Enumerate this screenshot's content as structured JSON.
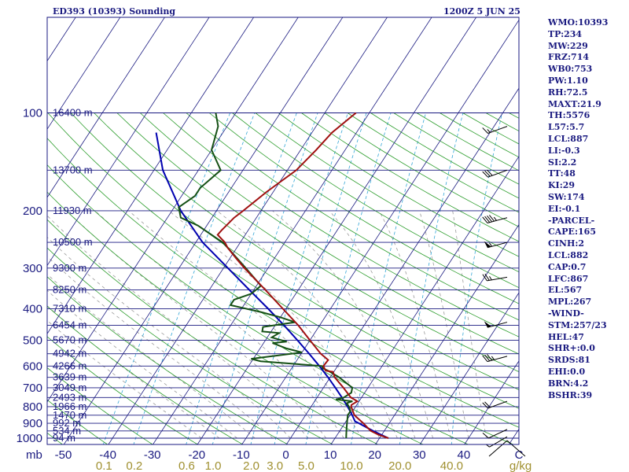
{
  "title_left": "ED393 (10393) Sounding",
  "title_right": "1200Z  5 JUN 25",
  "indices": [
    "WMO:10393",
    "TP:234",
    "MW:229",
    "FRZ:714",
    "WB0:753",
    "PW:1.10",
    "RH:72.5",
    "MAXT:21.9",
    "TH:5576",
    "L57:5.7",
    "LCL:887",
    "LI:-0.3",
    "SI:2.2",
    "TT:48",
    "KI:29",
    "SW:174",
    "EI:-0.1",
    "-PARCEL-",
    "CAPE:165",
    "CINH:2",
    "LCL:882",
    "CAP:0.7",
    "LFC:867",
    "EL:567",
    "MPL:267",
    "-WIND-",
    "STM:257/23",
    "HEL:47",
    "SHR+:0.0",
    "SRDS:81",
    "EHI:0.0",
    "BRN:4.2",
    "BSHR:39"
  ],
  "colors": {
    "frame": "#1a1a80",
    "isobar": "#1a1a80",
    "isotherm": "#1a1a80",
    "dry_adiabat": "#2e9e2e",
    "moist_adiabat": "#9a9a9a",
    "mixing_ratio": "#33a6d6",
    "temperature": "#a01010",
    "dewpoint": "#155015",
    "parcel": "#0000b0",
    "temp_labels": "#1a1a80",
    "mixing_labels": "#a09030",
    "wind_barbs": "#000000"
  },
  "chart_data": {
    "type": "skew-t log-p sounding",
    "title": "ED393 (10393) Sounding",
    "valid_time": "1200Z  5 JUN 25",
    "pressure_axis": {
      "label": "mb",
      "ticks": [
        100,
        200,
        300,
        400,
        500,
        600,
        700,
        800,
        900,
        1000
      ],
      "range": [
        1050,
        100
      ],
      "scale": "log"
    },
    "temperature_axis": {
      "ticks": [
        -50,
        -40,
        -30,
        -20,
        -10,
        0,
        10,
        20,
        30,
        40
      ],
      "unit": "C"
    },
    "mixing_ratio_axis": {
      "unit": "g/kg",
      "labels": [
        {
          "text": "0.1",
          "w": 0.1
        },
        {
          "text": "0.2",
          "w": 0.2
        },
        {
          "text": "0.6",
          "w": 0.6
        },
        {
          "text": "1.0",
          "w": 1.0
        },
        {
          "text": "2.0",
          "w": 2.0
        },
        {
          "text": "3.0",
          "w": 3.0
        },
        {
          "text": "5.0",
          "w": 5.0
        },
        {
          "text": "10.0",
          "w": 10.0
        },
        {
          "text": "20.0",
          "w": 20.0
        },
        {
          "text": "40.0",
          "w": 40.0
        }
      ]
    },
    "height_labels": [
      {
        "p": 100,
        "text": "16400 m"
      },
      {
        "p": 150,
        "text": "13700 m"
      },
      {
        "p": 200,
        "text": "11930 m"
      },
      {
        "p": 250,
        "text": "10500 m"
      },
      {
        "p": 300,
        "text": "9300 m"
      },
      {
        "p": 350,
        "text": "8250 m"
      },
      {
        "p": 400,
        "text": "7310 m"
      },
      {
        "p": 450,
        "text": "6454 m"
      },
      {
        "p": 500,
        "text": "5670 m"
      },
      {
        "p": 550,
        "text": "4942 m"
      },
      {
        "p": 600,
        "text": "4266 m"
      },
      {
        "p": 650,
        "text": "3639 m"
      },
      {
        "p": 700,
        "text": "3049 m"
      },
      {
        "p": 750,
        "text": "2493 m"
      },
      {
        "p": 800,
        "text": "1966 m"
      },
      {
        "p": 850,
        "text": "1470 m"
      },
      {
        "p": 900,
        "text": "992 m"
      },
      {
        "p": 950,
        "text": "534 m"
      },
      {
        "p": 1000,
        "text": "94 m"
      }
    ],
    "temperature": [
      [
        1000,
        22.0
      ],
      [
        975,
        19.2
      ],
      [
        950,
        17.0
      ],
      [
        925,
        15.6
      ],
      [
        900,
        14.2
      ],
      [
        875,
        12.6
      ],
      [
        850,
        11.0
      ],
      [
        825,
        10.0
      ],
      [
        800,
        9.0
      ],
      [
        790,
        8.8
      ],
      [
        770,
        9.6
      ],
      [
        750,
        7.6
      ],
      [
        700,
        4.5
      ],
      [
        650,
        1.0
      ],
      [
        625,
        -0.2
      ],
      [
        620,
        -2.0
      ],
      [
        600,
        -3.2
      ],
      [
        575,
        -3.0
      ],
      [
        550,
        -5.6
      ],
      [
        500,
        -10.0
      ],
      [
        450,
        -14.8
      ],
      [
        400,
        -20.7
      ],
      [
        350,
        -27.4
      ],
      [
        300,
        -35.3
      ],
      [
        280,
        -38.6
      ],
      [
        260,
        -42.0
      ],
      [
        250,
        -43.5
      ],
      [
        237,
        -46.2
      ],
      [
        230,
        -46.0
      ],
      [
        210,
        -45.0
      ],
      [
        200,
        -44.0
      ],
      [
        175,
        -41.5
      ],
      [
        150,
        -38.0
      ],
      [
        130,
        -36.5
      ],
      [
        115,
        -35.5
      ],
      [
        100,
        -33.0
      ]
    ],
    "dewpoint": [
      [
        1000,
        12.5
      ],
      [
        975,
        12.0
      ],
      [
        950,
        11.5
      ],
      [
        925,
        11.0
      ],
      [
        900,
        10.5
      ],
      [
        875,
        10.0
      ],
      [
        850,
        9.5
      ],
      [
        825,
        9.5
      ],
      [
        800,
        8.5
      ],
      [
        780,
        7.5
      ],
      [
        770,
        8.5
      ],
      [
        760,
        4.5
      ],
      [
        750,
        6.0
      ],
      [
        725,
        7.0
      ],
      [
        700,
        6.5
      ],
      [
        650,
        2.0
      ],
      [
        620,
        -1.5
      ],
      [
        610,
        -3.0
      ],
      [
        600,
        -3.5
      ],
      [
        580,
        -18.0
      ],
      [
        570,
        -20.5
      ],
      [
        545,
        -10.0
      ],
      [
        530,
        -14.0
      ],
      [
        510,
        -18.0
      ],
      [
        505,
        -15.0
      ],
      [
        490,
        -19.0
      ],
      [
        475,
        -18.0
      ],
      [
        470,
        -22.0
      ],
      [
        455,
        -22.5
      ],
      [
        440,
        -16.0
      ],
      [
        425,
        -20.0
      ],
      [
        410,
        -25.0
      ],
      [
        390,
        -33.0
      ],
      [
        375,
        -33.0
      ],
      [
        360,
        -30.0
      ],
      [
        340,
        -29.0
      ],
      [
        300,
        -35.0
      ],
      [
        260,
        -42.0
      ],
      [
        250,
        -44.0
      ],
      [
        222,
        -52.0
      ],
      [
        210,
        -57.0
      ],
      [
        195,
        -59.0
      ],
      [
        180,
        -57.0
      ],
      [
        170,
        -57.0
      ],
      [
        160,
        -56.0
      ],
      [
        150,
        -55.0
      ],
      [
        130,
        -60.0
      ],
      [
        110,
        -62.0
      ],
      [
        100,
        -64.5
      ]
    ],
    "parcel": [
      [
        1000,
        22.0
      ],
      [
        950,
        17.5
      ],
      [
        900,
        13.2
      ],
      [
        887,
        12.0
      ],
      [
        850,
        10.5
      ],
      [
        800,
        8.2
      ],
      [
        750,
        5.6
      ],
      [
        700,
        2.7
      ],
      [
        650,
        -0.5
      ],
      [
        600,
        -4.1
      ],
      [
        550,
        -8.2
      ],
      [
        500,
        -12.8
      ],
      [
        450,
        -18.0
      ],
      [
        400,
        -24.0
      ],
      [
        350,
        -31.0
      ],
      [
        300,
        -39.0
      ],
      [
        250,
        -48.5
      ],
      [
        200,
        -58.0
      ],
      [
        150,
        -68.0
      ],
      [
        115,
        -75.0
      ]
    ],
    "wind_barbs": [
      {
        "p": 110,
        "dir": 250,
        "kt": 15
      },
      {
        "p": 150,
        "dir": 250,
        "kt": 30
      },
      {
        "p": 210,
        "dir": 255,
        "kt": 45
      },
      {
        "p": 250,
        "dir": 255,
        "kt": 55
      },
      {
        "p": 320,
        "dir": 260,
        "kt": 25
      },
      {
        "p": 440,
        "dir": 255,
        "kt": 50
      },
      {
        "p": 560,
        "dir": 255,
        "kt": 35
      },
      {
        "p": 770,
        "dir": 250,
        "kt": 20
      },
      {
        "p": 940,
        "dir": 245,
        "kt": 10
      },
      {
        "p": 990,
        "dir": 240,
        "kt": 5
      }
    ]
  }
}
